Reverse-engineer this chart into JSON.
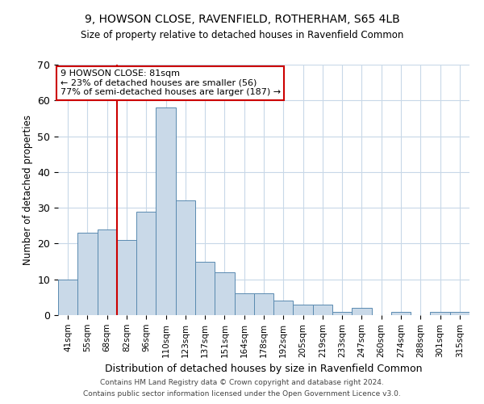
{
  "title1": "9, HOWSON CLOSE, RAVENFIELD, ROTHERHAM, S65 4LB",
  "title2": "Size of property relative to detached houses in Ravenfield Common",
  "xlabel": "Distribution of detached houses by size in Ravenfield Common",
  "ylabel": "Number of detached properties",
  "bin_labels": [
    "41sqm",
    "55sqm",
    "68sqm",
    "82sqm",
    "96sqm",
    "110sqm",
    "123sqm",
    "137sqm",
    "151sqm",
    "164sqm",
    "178sqm",
    "192sqm",
    "205sqm",
    "219sqm",
    "233sqm",
    "247sqm",
    "260sqm",
    "274sqm",
    "288sqm",
    "301sqm",
    "315sqm"
  ],
  "bar_heights": [
    10,
    23,
    24,
    21,
    29,
    58,
    32,
    15,
    12,
    6,
    6,
    4,
    3,
    3,
    1,
    2,
    0,
    1,
    0,
    1,
    1
  ],
  "bar_color": "#c9d9e8",
  "bar_edge_color": "#5a8ab0",
  "vline_x": 3,
  "vline_color": "#cc0000",
  "ylim": [
    0,
    70
  ],
  "yticks": [
    0,
    10,
    20,
    30,
    40,
    50,
    60,
    70
  ],
  "annotation_title": "9 HOWSON CLOSE: 81sqm",
  "annotation_line2": "← 23% of detached houses are smaller (56)",
  "annotation_line3": "77% of semi-detached houses are larger (187) →",
  "annotation_box_color": "#ffffff",
  "annotation_edge_color": "#cc0000",
  "footer1": "Contains HM Land Registry data © Crown copyright and database right 2024.",
  "footer2": "Contains public sector information licensed under the Open Government Licence v3.0.",
  "bg_color": "#ffffff",
  "grid_color": "#c8d8e8"
}
